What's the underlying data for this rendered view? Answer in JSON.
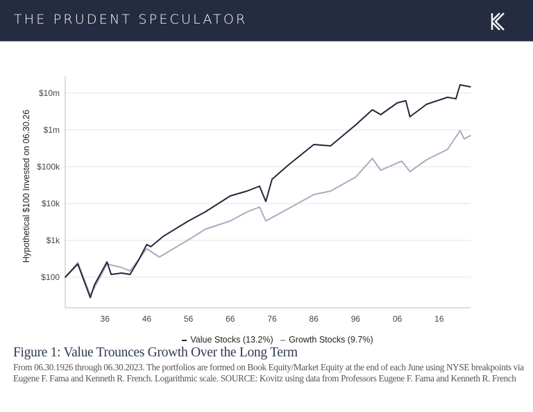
{
  "header": {
    "title": "THE PRUDENT SPECULATOR",
    "logo": "K"
  },
  "colors": {
    "header_bg": "#252c41",
    "value_series": "#23283a",
    "growth_series": "#a8adbf",
    "caption_title": "#2e3a55"
  },
  "chart_data": {
    "type": "line",
    "ylabel": "Hypothetical $100 Invested on 06.30.26",
    "y_scale": "log",
    "ylim": [
      10,
      25000000
    ],
    "xlim": [
      1926.5,
      2023.5
    ],
    "y_ticks": [
      {
        "value": 100,
        "label": "$100"
      },
      {
        "value": 1000,
        "label": "$1k"
      },
      {
        "value": 10000,
        "label": "$10k"
      },
      {
        "value": 100000,
        "label": "$100k"
      },
      {
        "value": 1000000,
        "label": "$1m"
      },
      {
        "value": 10000000,
        "label": "$10m"
      }
    ],
    "x_ticks": [
      {
        "value": 1936,
        "label": "36"
      },
      {
        "value": 1946,
        "label": "46"
      },
      {
        "value": 1956,
        "label": "56"
      },
      {
        "value": 1966,
        "label": "66"
      },
      {
        "value": 1976,
        "label": "76"
      },
      {
        "value": 1986,
        "label": "86"
      },
      {
        "value": 1996,
        "label": "96"
      },
      {
        "value": 2006,
        "label": "06"
      },
      {
        "value": 2016,
        "label": "16"
      }
    ],
    "grid": "horizontal",
    "legend": "bottom",
    "series": [
      {
        "name": "Value Stocks (13.2%)",
        "color": "#23283a",
        "x": [
          1926.5,
          1929.5,
          1932.5,
          1933.5,
          1936.5,
          1937.5,
          1940,
          1942,
          1944,
          1946,
          1947,
          1950,
          1956,
          1960,
          1966,
          1970,
          1973,
          1974.5,
          1976,
          1980,
          1986,
          1990,
          1996,
          2000,
          2002,
          2006,
          2008,
          2009,
          2013,
          2018,
          2020,
          2021,
          2023.5
        ],
        "y": [
          100,
          228,
          28,
          62,
          260,
          119,
          130,
          119,
          284,
          770,
          676,
          1300,
          3375,
          5940,
          16100,
          21900,
          29600,
          11400,
          45700,
          114000,
          402000,
          368000,
          1360000,
          3520000,
          2600000,
          5440000,
          6200000,
          2280000,
          4990000,
          7700000,
          7000000,
          16800000,
          14800000
        ]
      },
      {
        "name": "Growth Stocks (9.7%)",
        "color": "#a8adbf",
        "x": [
          1926.5,
          1929.5,
          1932.5,
          1936.5,
          1940,
          1942,
          1946,
          1949,
          1956,
          1960,
          1966,
          1970,
          1973,
          1974.5,
          1980,
          1986,
          1990,
          1996,
          2000,
          2002,
          2007,
          2009,
          2013,
          2018,
          2021,
          2022,
          2023.5
        ],
        "y": [
          100,
          249,
          32,
          228,
          184,
          148,
          594,
          352,
          1040,
          2000,
          3375,
          5940,
          8050,
          3375,
          7380,
          17600,
          21900,
          52100,
          168000,
          80500,
          142000,
          73800,
          155000,
          296000,
          957000,
          569000,
          706000
        ]
      }
    ]
  },
  "caption": {
    "title": "Figure 1: Value Trounces Growth Over the Long Term",
    "body": "From 06.30.1926 through 06.30.2023. The portfolios are formed on Book Equity/Market Equity at the end of each June using NYSE breakpoints via Eugene F. Fama and Kenneth R. French. Logarithmic scale. SOURCE: Kovitz using data from Professors Eugene F. Fama and Kenneth R. French"
  }
}
